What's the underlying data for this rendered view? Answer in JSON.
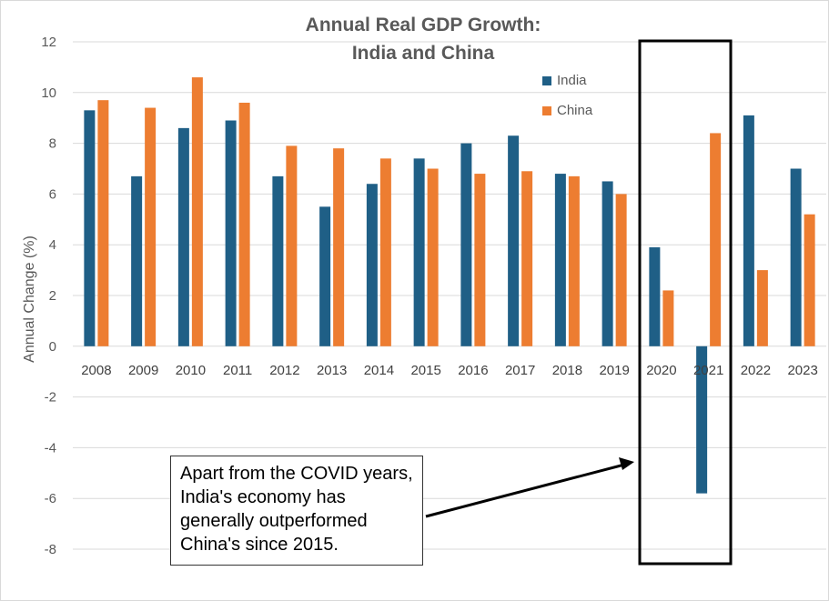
{
  "chart_data": {
    "type": "bar",
    "title_line1": "Annual Real GDP Growth:",
    "title_line2": "India and China",
    "xlabel": "",
    "ylabel": "Annual Change (%)",
    "ylim": [
      -8,
      12
    ],
    "y_ticks": [
      "12",
      "10",
      "8",
      "6",
      "4",
      "2",
      "0",
      "-2",
      "-4",
      "-6",
      "-8"
    ],
    "grid": true,
    "legend_position": "top-right",
    "categories": [
      "2008",
      "2009",
      "2010",
      "2011",
      "2012",
      "2013",
      "2014",
      "2015",
      "2016",
      "2017",
      "2018",
      "2019",
      "2020",
      "2021",
      "2022",
      "2023"
    ],
    "series": [
      {
        "name": "India",
        "color": "#1f5f86",
        "values": [
          9.3,
          6.7,
          8.6,
          8.9,
          6.7,
          5.5,
          6.4,
          7.4,
          8.0,
          8.3,
          6.8,
          6.5,
          3.9,
          -5.8,
          9.1,
          7.0
        ]
      },
      {
        "name": "China",
        "color": "#ed7d31",
        "values": [
          9.7,
          9.4,
          10.6,
          9.6,
          7.9,
          7.8,
          7.4,
          7.0,
          6.8,
          6.9,
          6.7,
          6.0,
          2.2,
          8.4,
          3.0,
          5.2
        ]
      }
    ],
    "annotation": "Apart from the COVID years, India's economy has generally outperformed China's since 2015.",
    "highlight_categories": [
      "2020",
      "2021"
    ]
  }
}
